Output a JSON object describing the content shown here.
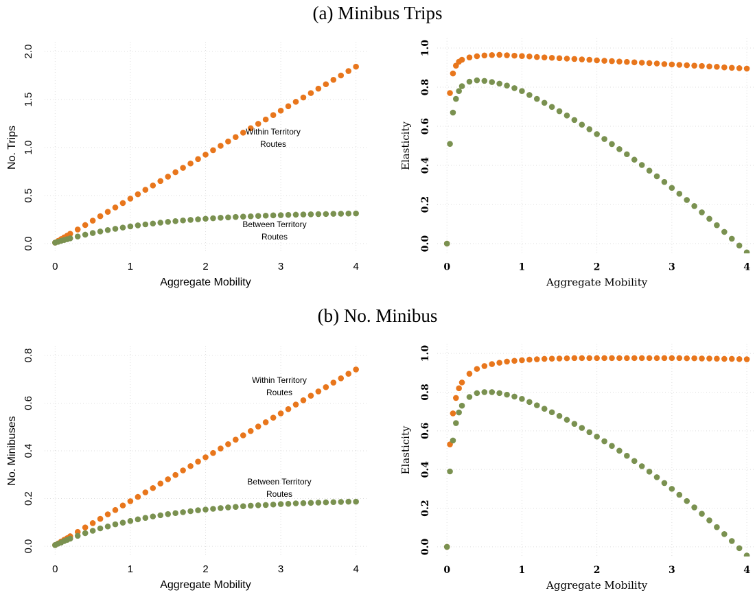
{
  "section_titles": [
    "(a) Minibus Trips",
    "(b) No. Minibus"
  ],
  "chart_data": [
    {
      "type": "scatter",
      "xlabel": "Aggregate Mobility",
      "ylabel": "No. Trips",
      "grid": true,
      "xlim": [
        -0.14,
        4.14
      ],
      "ylim": [
        -0.1,
        2.1
      ],
      "xticks": [
        0,
        1,
        2,
        3,
        4
      ],
      "yticks": [
        {
          "value": 0,
          "label": "0.0"
        },
        {
          "value": 0.5,
          "label": "0.5"
        },
        {
          "value": 1,
          "label": "1.0"
        },
        {
          "value": 1.5,
          "label": "1.5"
        },
        {
          "value": 2,
          "label": "2.0"
        }
      ],
      "annotations": [
        [
          "Within Territory",
          "Routes"
        ],
        [
          "Between Territory",
          "Routes"
        ]
      ],
      "x": [
        0,
        0.04,
        0.08,
        0.12,
        0.16,
        0.2,
        0.3,
        0.4,
        0.5,
        0.6,
        0.7,
        0.8,
        0.9,
        1,
        1.1,
        1.2,
        1.3,
        1.4,
        1.5,
        1.6,
        1.7,
        1.8,
        1.9,
        2,
        2.1,
        2.2,
        2.3,
        2.4,
        2.5,
        2.6,
        2.7,
        2.8,
        2.9,
        3,
        3.1,
        3.2,
        3.3,
        3.4,
        3.5,
        3.6,
        3.7,
        3.8,
        3.9,
        4
      ],
      "series": [
        {
          "color": "#e8761c",
          "values": [
            0.01,
            0.028,
            0.047,
            0.065,
            0.083,
            0.102,
            0.147,
            0.193,
            0.239,
            0.285,
            0.331,
            0.376,
            0.422,
            0.468,
            0.514,
            0.56,
            0.605,
            0.651,
            0.697,
            0.743,
            0.789,
            0.834,
            0.88,
            0.926,
            0.972,
            1.018,
            1.063,
            1.109,
            1.155,
            1.201,
            1.247,
            1.292,
            1.338,
            1.384,
            1.43,
            1.476,
            1.521,
            1.567,
            1.613,
            1.659,
            1.705,
            1.75,
            1.796,
            1.842
          ]
        },
        {
          "color": "#7a9150",
          "values": [
            0.01,
            0.019,
            0.029,
            0.038,
            0.046,
            0.055,
            0.074,
            0.093,
            0.11,
            0.126,
            0.141,
            0.154,
            0.167,
            0.179,
            0.19,
            0.2,
            0.209,
            0.218,
            0.226,
            0.234,
            0.241,
            0.247,
            0.253,
            0.259,
            0.264,
            0.269,
            0.273,
            0.277,
            0.281,
            0.284,
            0.288,
            0.291,
            0.294,
            0.296,
            0.299,
            0.301,
            0.303,
            0.305,
            0.307,
            0.308,
            0.31,
            0.311,
            0.313,
            0.314
          ]
        }
      ]
    },
    {
      "type": "scatter",
      "xlabel": "Aggregate Mobility",
      "ylabel": "Elasticity",
      "grid": true,
      "xlim": [
        -0.13,
        4.1
      ],
      "ylim": [
        -0.05,
        1.05
      ],
      "xticks": [
        0,
        1,
        2,
        3,
        4
      ],
      "yticks": [
        {
          "value": 0,
          "label": "0.0"
        },
        {
          "value": 0.2,
          "label": "0.2"
        },
        {
          "value": 0.4,
          "label": "0.4"
        },
        {
          "value": 0.6,
          "label": "0.6"
        },
        {
          "value": 0.8,
          "label": "0.8"
        },
        {
          "value": 1,
          "label": "1.0"
        }
      ],
      "x": [
        0,
        0.04,
        0.08,
        0.12,
        0.16,
        0.2,
        0.3,
        0.4,
        0.5,
        0.6,
        0.7,
        0.8,
        0.9,
        1,
        1.1,
        1.2,
        1.3,
        1.4,
        1.5,
        1.6,
        1.7,
        1.8,
        1.9,
        2,
        2.1,
        2.2,
        2.3,
        2.4,
        2.5,
        2.6,
        2.7,
        2.8,
        2.9,
        3,
        3.1,
        3.2,
        3.3,
        3.4,
        3.5,
        3.6,
        3.7,
        3.8,
        3.9,
        4
      ],
      "series": [
        {
          "color": "#e8761c",
          "values": [
            0,
            0.77,
            0.87,
            0.91,
            0.93,
            0.94,
            0.952,
            0.958,
            0.962,
            0.964,
            0.965,
            0.963,
            0.961,
            0.959,
            0.957,
            0.954,
            0.952,
            0.95,
            0.948,
            0.946,
            0.944,
            0.942,
            0.94,
            0.937,
            0.935,
            0.933,
            0.931,
            0.929,
            0.927,
            0.925,
            0.923,
            0.921,
            0.918,
            0.916,
            0.914,
            0.912,
            0.91,
            0.908,
            0.906,
            0.904,
            0.901,
            0.899,
            0.897,
            0.895
          ]
        },
        {
          "color": "#7a9150",
          "values": [
            0,
            0.51,
            0.67,
            0.74,
            0.78,
            0.805,
            0.828,
            0.835,
            0.832,
            0.826,
            0.818,
            0.808,
            0.795,
            0.78,
            0.76,
            0.74,
            0.72,
            0.699,
            0.677,
            0.655,
            0.632,
            0.608,
            0.585,
            0.56,
            0.535,
            0.509,
            0.483,
            0.457,
            0.429,
            0.402,
            0.373,
            0.344,
            0.315,
            0.285,
            0.255,
            0.223,
            0.192,
            0.16,
            0.127,
            0.094,
            0.06,
            0.025,
            -0.01,
            -0.045
          ]
        }
      ]
    },
    {
      "type": "scatter",
      "xlabel": "Aggregate Mobility",
      "ylabel": "No. Minibuses",
      "grid": true,
      "xlim": [
        -0.14,
        4.14
      ],
      "ylim": [
        -0.04,
        0.84
      ],
      "xticks": [
        0,
        1,
        2,
        3,
        4
      ],
      "yticks": [
        {
          "value": 0,
          "label": "0.0"
        },
        {
          "value": 0.2,
          "label": "0.2"
        },
        {
          "value": 0.4,
          "label": "0.4"
        },
        {
          "value": 0.6,
          "label": "0.6"
        },
        {
          "value": 0.8,
          "label": "0.8"
        }
      ],
      "annotations": [
        [
          "Within Territory",
          "Routes"
        ],
        [
          "Between Territory",
          "Routes"
        ]
      ],
      "x": [
        0,
        0.04,
        0.08,
        0.12,
        0.16,
        0.2,
        0.3,
        0.4,
        0.5,
        0.6,
        0.7,
        0.8,
        0.9,
        1,
        1.1,
        1.2,
        1.3,
        1.4,
        1.5,
        1.6,
        1.7,
        1.8,
        1.9,
        2,
        2.1,
        2.2,
        2.3,
        2.4,
        2.5,
        2.6,
        2.7,
        2.8,
        2.9,
        3,
        3.1,
        3.2,
        3.3,
        3.4,
        3.5,
        3.6,
        3.7,
        3.8,
        3.9,
        4
      ],
      "series": [
        {
          "color": "#e8761c",
          "values": [
            0.005,
            0.012,
            0.02,
            0.027,
            0.034,
            0.042,
            0.06,
            0.079,
            0.097,
            0.115,
            0.134,
            0.152,
            0.171,
            0.189,
            0.207,
            0.226,
            0.244,
            0.263,
            0.281,
            0.299,
            0.318,
            0.336,
            0.355,
            0.373,
            0.391,
            0.41,
            0.428,
            0.447,
            0.465,
            0.483,
            0.502,
            0.52,
            0.539,
            0.557,
            0.575,
            0.594,
            0.612,
            0.631,
            0.649,
            0.667,
            0.686,
            0.704,
            0.723,
            0.741
          ]
        },
        {
          "color": "#7a9150",
          "values": [
            0.005,
            0.011,
            0.016,
            0.022,
            0.027,
            0.032,
            0.044,
            0.055,
            0.065,
            0.075,
            0.083,
            0.092,
            0.099,
            0.106,
            0.113,
            0.119,
            0.125,
            0.13,
            0.135,
            0.139,
            0.143,
            0.147,
            0.151,
            0.154,
            0.157,
            0.16,
            0.163,
            0.165,
            0.168,
            0.17,
            0.172,
            0.173,
            0.175,
            0.177,
            0.178,
            0.18,
            0.181,
            0.182,
            0.183,
            0.184,
            0.185,
            0.186,
            0.187,
            0.187
          ]
        }
      ]
    },
    {
      "type": "scatter",
      "xlabel": "Aggregate Mobility",
      "ylabel": "Elasticity",
      "grid": true,
      "xlim": [
        -0.13,
        4.1
      ],
      "ylim": [
        -0.05,
        1.05
      ],
      "xticks": [
        0,
        1,
        2,
        3,
        4
      ],
      "yticks": [
        {
          "value": 0,
          "label": "0.0"
        },
        {
          "value": 0.2,
          "label": "0.2"
        },
        {
          "value": 0.4,
          "label": "0.4"
        },
        {
          "value": 0.6,
          "label": "0.6"
        },
        {
          "value": 0.8,
          "label": "0.8"
        },
        {
          "value": 1,
          "label": "1.0"
        }
      ],
      "x": [
        0,
        0.04,
        0.08,
        0.12,
        0.16,
        0.2,
        0.3,
        0.4,
        0.5,
        0.6,
        0.7,
        0.8,
        0.9,
        1,
        1.1,
        1.2,
        1.3,
        1.4,
        1.5,
        1.6,
        1.7,
        1.8,
        1.9,
        2,
        2.1,
        2.2,
        2.3,
        2.4,
        2.5,
        2.6,
        2.7,
        2.8,
        2.9,
        3,
        3.1,
        3.2,
        3.3,
        3.4,
        3.5,
        3.6,
        3.7,
        3.8,
        3.9,
        4
      ],
      "series": [
        {
          "color": "#e8761c",
          "values": [
            0,
            0.53,
            0.69,
            0.77,
            0.82,
            0.85,
            0.895,
            0.92,
            0.935,
            0.945,
            0.952,
            0.958,
            0.962,
            0.965,
            0.968,
            0.97,
            0.972,
            0.973,
            0.974,
            0.975,
            0.976,
            0.976,
            0.976,
            0.976,
            0.976,
            0.976,
            0.976,
            0.976,
            0.976,
            0.976,
            0.976,
            0.976,
            0.976,
            0.976,
            0.976,
            0.975,
            0.975,
            0.974,
            0.974,
            0.973,
            0.972,
            0.972,
            0.971,
            0.97
          ]
        },
        {
          "color": "#7a9150",
          "values": [
            0,
            0.39,
            0.55,
            0.64,
            0.695,
            0.73,
            0.775,
            0.795,
            0.8,
            0.8,
            0.795,
            0.787,
            0.777,
            0.765,
            0.749,
            0.732,
            0.714,
            0.696,
            0.677,
            0.657,
            0.636,
            0.615,
            0.593,
            0.57,
            0.546,
            0.522,
            0.497,
            0.471,
            0.444,
            0.417,
            0.389,
            0.36,
            0.33,
            0.3,
            0.269,
            0.237,
            0.204,
            0.171,
            0.137,
            0.102,
            0.066,
            0.03,
            -0.007,
            -0.045
          ]
        }
      ]
    }
  ]
}
